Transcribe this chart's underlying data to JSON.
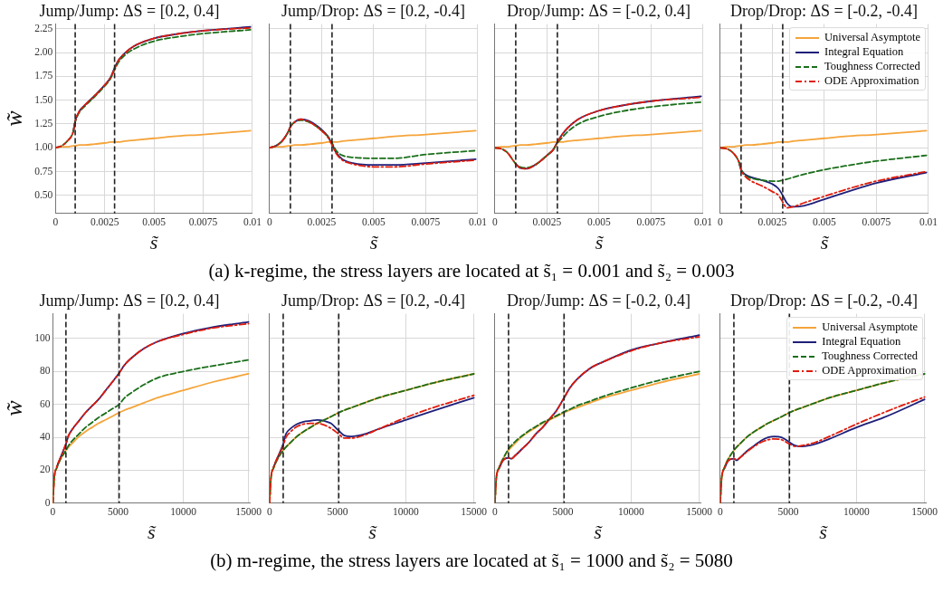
{
  "chart_data": [
    {
      "type": "line",
      "title": "Jump/Jump: ΔS = [0.2, 0.4]",
      "xlabel": "s̃",
      "ylabel": "w̃",
      "grid": true,
      "annotations": [
        "(a) k-regime, the stress layers are located at s̃₁ = 0.001 and s̃₂ = 0.003"
      ],
      "x": [
        0,
        0.0003,
        0.0006,
        0.0009,
        0.001,
        0.0012,
        0.0015,
        0.002,
        0.0025,
        0.0028,
        0.003,
        0.0032,
        0.0035,
        0.004,
        0.005,
        0.006,
        0.0075,
        0.0099
      ],
      "xlim": [
        0,
        0.01
      ],
      "xticks": [
        0,
        0.0025,
        0.005,
        0.0075,
        0.01
      ],
      "ylim": [
        0.31,
        2.3
      ],
      "yticks": [
        {
          "value": 0.5,
          "label": "0.50"
        },
        0.75,
        {
          "value": 1,
          "label": "1.00"
        },
        1.25,
        {
          "value": 1.5,
          "label": "1.50"
        },
        1.75,
        {
          "value": 2,
          "label": "2.00"
        },
        2.25
      ],
      "ref_lines": [
        {
          "axis": "x",
          "value": 0.001,
          "color": "#222222",
          "line_style": "dashed"
        },
        {
          "axis": "x",
          "value": 0.003,
          "color": "#222222",
          "line_style": "dashed"
        }
      ],
      "series": [
        {
          "color": "#f5a43a",
          "line_style": "solid",
          "values": [
            1.0,
            1.01,
            1.01,
            1.02,
            1.02,
            1.03,
            1.03,
            1.04,
            1.05,
            1.06,
            1.06,
            1.06,
            1.07,
            1.08,
            1.1,
            1.12,
            1.14,
            1.18
          ]
        },
        {
          "color": "#1f1f7a",
          "line_style": "solid",
          "values": [
            null,
            null,
            null,
            1.17,
            1.28,
            1.38,
            1.45,
            1.55,
            1.66,
            1.74,
            1.84,
            1.92,
            1.99,
            2.07,
            2.15,
            2.19,
            2.23,
            2.27
          ]
        },
        {
          "color": "#1a6e1a",
          "line_style": "dashed",
          "values": [
            1.0,
            1.02,
            1.07,
            1.17,
            1.27,
            1.37,
            1.44,
            1.54,
            1.65,
            1.73,
            1.82,
            1.9,
            1.97,
            2.04,
            2.12,
            2.16,
            2.2,
            2.24
          ]
        },
        {
          "color": "#e01b0b",
          "line_style": "dashdot",
          "values": [
            1.0,
            1.02,
            1.07,
            1.17,
            1.28,
            1.38,
            1.45,
            1.55,
            1.66,
            1.74,
            1.83,
            1.92,
            1.99,
            2.07,
            2.15,
            2.19,
            2.23,
            2.26
          ]
        }
      ]
    },
    {
      "type": "line",
      "title": "Jump/Drop: ΔS = [0.2, -0.4]",
      "xlabel": "s̃",
      "grid": true,
      "tick_labels": "x",
      "x": [
        0,
        0.0003,
        0.0006,
        0.0009,
        0.001,
        0.0012,
        0.0015,
        0.002,
        0.0025,
        0.0028,
        0.003,
        0.0032,
        0.0035,
        0.004,
        0.005,
        0.006,
        0.0075,
        0.0099
      ],
      "xlim": [
        0,
        0.01
      ],
      "xticks": [
        0,
        0.0025,
        0.005,
        0.0075,
        0.01
      ],
      "ylim": [
        0.31,
        2.3
      ],
      "yticks": [
        0.5,
        0.75,
        1,
        1.25,
        1.5,
        1.75,
        2,
        2.25
      ],
      "ref_lines": [
        {
          "axis": "x",
          "value": 0.001,
          "color": "#222222",
          "line_style": "dashed"
        },
        {
          "axis": "x",
          "value": 0.003,
          "color": "#222222",
          "line_style": "dashed"
        }
      ],
      "series": [
        {
          "color": "#f5a43a",
          "line_style": "solid",
          "values": [
            1.0,
            1.01,
            1.01,
            1.02,
            1.02,
            1.03,
            1.03,
            1.04,
            1.05,
            1.06,
            1.06,
            1.06,
            1.07,
            1.08,
            1.1,
            1.12,
            1.14,
            1.18
          ]
        },
        {
          "color": "#1f1f7a",
          "line_style": "solid",
          "values": [
            1.0,
            1.02,
            1.07,
            1.17,
            1.22,
            1.27,
            1.3,
            1.27,
            1.19,
            1.12,
            1.04,
            0.95,
            0.88,
            0.84,
            0.82,
            0.82,
            0.84,
            0.88
          ]
        },
        {
          "color": "#1a6e1a",
          "line_style": "dashed",
          "values": [
            1.0,
            1.02,
            1.07,
            1.17,
            1.22,
            1.27,
            1.29,
            1.26,
            1.18,
            1.12,
            1.05,
            0.97,
            0.92,
            0.9,
            0.89,
            0.89,
            0.93,
            0.97
          ]
        },
        {
          "color": "#e01b0b",
          "line_style": "dashdot",
          "values": [
            1.0,
            1.02,
            1.07,
            1.17,
            1.22,
            1.27,
            1.3,
            1.26,
            1.18,
            1.11,
            1.03,
            0.94,
            0.87,
            0.83,
            0.8,
            0.8,
            0.83,
            0.87
          ]
        }
      ]
    },
    {
      "type": "line",
      "title": "Drop/Jump: ΔS = [-0.2, 0.4]",
      "xlabel": "s̃",
      "grid": true,
      "tick_labels": "x",
      "x": [
        0,
        0.0003,
        0.0006,
        0.0009,
        0.001,
        0.0012,
        0.0015,
        0.002,
        0.0025,
        0.0028,
        0.003,
        0.0032,
        0.0035,
        0.004,
        0.005,
        0.006,
        0.0075,
        0.0099
      ],
      "xlim": [
        0,
        0.01
      ],
      "xticks": [
        0,
        0.0025,
        0.005,
        0.0075,
        0.01
      ],
      "ylim": [
        0.31,
        2.3
      ],
      "yticks": [
        0.5,
        0.75,
        1,
        1.25,
        1.5,
        1.75,
        2,
        2.25
      ],
      "ref_lines": [
        {
          "axis": "x",
          "value": 0.001,
          "color": "#222222",
          "line_style": "dashed"
        },
        {
          "axis": "x",
          "value": 0.003,
          "color": "#222222",
          "line_style": "dashed"
        }
      ],
      "series": [
        {
          "color": "#f5a43a",
          "line_style": "solid",
          "values": [
            1.0,
            1.01,
            1.01,
            1.02,
            1.02,
            1.03,
            1.03,
            1.04,
            1.05,
            1.06,
            1.06,
            1.06,
            1.07,
            1.08,
            1.1,
            1.12,
            1.14,
            1.18
          ]
        },
        {
          "color": "#1f1f7a",
          "line_style": "solid",
          "values": [
            null,
            null,
            null,
            null,
            0.83,
            0.79,
            0.78,
            0.83,
            0.92,
            0.98,
            1.06,
            1.13,
            1.21,
            1.3,
            1.39,
            1.44,
            1.49,
            1.54
          ]
        },
        {
          "color": "#1a6e1a",
          "line_style": "dashed",
          "values": [
            1.0,
            0.99,
            0.95,
            0.86,
            0.83,
            0.8,
            0.79,
            0.83,
            0.92,
            0.98,
            1.05,
            1.1,
            1.17,
            1.25,
            1.33,
            1.38,
            1.43,
            1.48
          ]
        },
        {
          "color": "#e01b0b",
          "line_style": "dashdot",
          "values": [
            1.0,
            0.99,
            0.95,
            0.86,
            0.83,
            0.79,
            0.78,
            0.83,
            0.92,
            0.98,
            1.06,
            1.13,
            1.21,
            1.3,
            1.39,
            1.44,
            1.49,
            1.53
          ]
        }
      ]
    },
    {
      "type": "line",
      "title": "Drop/Drop: ΔS = [-0.2, -0.4]",
      "xlabel": "s̃",
      "grid": true,
      "tick_labels": "x",
      "legend": "top right",
      "x": [
        0,
        0.0003,
        0.0006,
        0.0009,
        0.001,
        0.0012,
        0.0015,
        0.002,
        0.0025,
        0.0028,
        0.003,
        0.0032,
        0.0035,
        0.004,
        0.005,
        0.006,
        0.0075,
        0.0099
      ],
      "xlim": [
        0,
        0.01
      ],
      "xticks": [
        0,
        0.0025,
        0.005,
        0.0075,
        0.01
      ],
      "ylim": [
        0.31,
        2.3
      ],
      "yticks": [
        0.5,
        0.75,
        1,
        1.25,
        1.5,
        1.75,
        2,
        2.25
      ],
      "ref_lines": [
        {
          "axis": "x",
          "value": 0.001,
          "color": "#222222",
          "line_style": "dashed"
        },
        {
          "axis": "x",
          "value": 0.003,
          "color": "#222222",
          "line_style": "dashed"
        }
      ],
      "series": [
        {
          "name": "Universal Asymptote",
          "color": "#f5a43a",
          "line_style": "solid",
          "values": [
            1.0,
            1.01,
            1.01,
            1.02,
            1.02,
            1.03,
            1.03,
            1.04,
            1.05,
            1.06,
            1.06,
            1.06,
            1.07,
            1.08,
            1.1,
            1.12,
            1.14,
            1.18
          ]
        },
        {
          "name": "Integral Equation",
          "color": "#1f1f7a",
          "line_style": "solid",
          "values": [
            null,
            null,
            null,
            0.85,
            0.77,
            0.72,
            0.69,
            0.66,
            0.62,
            0.57,
            0.5,
            0.42,
            0.38,
            0.39,
            0.46,
            0.53,
            0.63,
            0.74
          ]
        },
        {
          "name": "Toughness Corrected",
          "color": "#1a6e1a",
          "line_style": "dashed",
          "values": [
            1.0,
            0.99,
            0.95,
            0.85,
            0.77,
            0.71,
            0.68,
            0.66,
            0.65,
            0.65,
            0.66,
            0.67,
            0.69,
            0.72,
            0.77,
            0.81,
            0.86,
            0.92
          ]
        },
        {
          "name": "ODE Approximation",
          "color": "#e01b0b",
          "line_style": "dashdot",
          "values": [
            1.0,
            0.99,
            0.95,
            0.85,
            0.77,
            0.7,
            0.65,
            0.6,
            0.54,
            0.5,
            0.43,
            0.37,
            0.38,
            0.42,
            0.49,
            0.56,
            0.65,
            0.75
          ]
        }
      ]
    },
    {
      "type": "line",
      "title": "Jump/Jump: ΔS = [0.2, 0.4]",
      "xlabel": "s̃",
      "ylabel": "w̃",
      "grid": true,
      "annotations": [
        "(b) m-regime, the stress layers are located at s̃₁ = 1000 and s̃₂ = 5080"
      ],
      "x": [
        0,
        100,
        300,
        600,
        1000,
        1200,
        1500,
        2000,
        2500,
        3000,
        3500,
        4000,
        4500,
        5080,
        5500,
        6000,
        7000,
        8000,
        10000,
        12000,
        15000
      ],
      "xlim": [
        0,
        15100
      ],
      "xticks": [
        0,
        5000,
        10000,
        15000
      ],
      "ylim": [
        0,
        115
      ],
      "yticks": [
        0,
        20,
        40,
        60,
        80,
        100
      ],
      "ref_lines": [
        {
          "axis": "x",
          "value": 1000,
          "color": "#222222",
          "line_style": "dashed"
        },
        {
          "axis": "x",
          "value": 5080,
          "color": "#222222",
          "line_style": "dashed"
        }
      ],
      "series": [
        {
          "color": "#f5a43a",
          "line_style": "solid",
          "values": [
            0,
            15,
            21.5,
            27,
            32,
            34,
            36.5,
            40.5,
            43.5,
            46,
            48.5,
            50.5,
            52.5,
            55,
            56.5,
            58,
            61,
            64,
            68.5,
            73,
            78.5
          ]
        },
        {
          "color": "#1f1f7a",
          "line_style": "solid",
          "values": [
            null,
            null,
            22,
            28,
            36,
            41,
            45,
            50,
            55,
            59,
            63,
            68,
            73,
            79,
            84,
            88,
            94,
            98,
            103,
            106.5,
            110
          ]
        },
        {
          "color": "#1a6e1a",
          "line_style": "dashed",
          "values": [
            0,
            15,
            21.5,
            27,
            32,
            35,
            38,
            42,
            46,
            49,
            52,
            54.5,
            57,
            60,
            64,
            67,
            72,
            76,
            80,
            83,
            87
          ]
        },
        {
          "color": "#e01b0b",
          "line_style": "dashdot",
          "values": [
            0,
            15,
            22,
            28,
            36,
            41,
            45,
            50,
            55,
            59,
            63,
            68,
            73,
            79,
            84,
            88,
            94,
            98,
            102.5,
            106,
            109
          ]
        }
      ]
    },
    {
      "type": "line",
      "title": "Jump/Drop: ΔS = [0.2, -0.4]",
      "xlabel": "s̃",
      "grid": true,
      "tick_labels": "x",
      "x": [
        0,
        100,
        300,
        600,
        1000,
        1200,
        1500,
        2000,
        2500,
        3000,
        3500,
        4000,
        4500,
        5080,
        5500,
        6000,
        7000,
        8000,
        10000,
        12000,
        15000
      ],
      "xlim": [
        0,
        15100
      ],
      "xticks": [
        0,
        5000,
        10000,
        15000
      ],
      "ylim": [
        0,
        115
      ],
      "yticks": [
        0,
        20,
        40,
        60,
        80,
        100
      ],
      "ref_lines": [
        {
          "axis": "x",
          "value": 1000,
          "color": "#222222",
          "line_style": "dashed"
        },
        {
          "axis": "x",
          "value": 5080,
          "color": "#222222",
          "line_style": "dashed"
        }
      ],
      "series": [
        {
          "color": "#f5a43a",
          "line_style": "solid",
          "values": [
            0,
            15,
            21.5,
            27,
            32,
            34,
            36.5,
            40.5,
            43.5,
            46,
            48.5,
            50.5,
            52.5,
            55,
            56.5,
            58,
            61,
            64,
            68.5,
            73,
            78.5
          ]
        },
        {
          "color": "#1f1f7a",
          "line_style": "solid",
          "values": [
            null,
            null,
            22,
            28,
            36,
            42,
            45,
            48,
            49.5,
            50,
            50.5,
            50,
            48.5,
            44,
            41,
            40.5,
            42,
            45,
            50.5,
            56,
            64
          ]
        },
        {
          "color": "#1a6e1a",
          "line_style": "dashed",
          "values": [
            0,
            15,
            21.5,
            27,
            32,
            34,
            36.5,
            40.5,
            43.5,
            46,
            48.5,
            50.5,
            52.5,
            55,
            56.5,
            58,
            61,
            64,
            68.5,
            73,
            78.5
          ]
        },
        {
          "color": "#e01b0b",
          "line_style": "dashdot",
          "values": [
            0,
            15,
            22,
            28,
            35,
            40,
            43,
            46.5,
            48,
            48.5,
            48.5,
            47.5,
            45.5,
            42,
            39.5,
            39.5,
            41.5,
            45,
            52,
            58,
            65.5
          ]
        }
      ]
    },
    {
      "type": "line",
      "title": "Drop/Jump: ΔS = [-0.2, 0.4]",
      "xlabel": "s̃",
      "grid": true,
      "tick_labels": "x",
      "x": [
        0,
        100,
        300,
        600,
        1000,
        1200,
        1500,
        2000,
        2500,
        3000,
        3500,
        4000,
        4500,
        5080,
        5500,
        6000,
        7000,
        8000,
        10000,
        12000,
        15000
      ],
      "xlim": [
        0,
        15100
      ],
      "xticks": [
        0,
        5000,
        10000,
        15000
      ],
      "ylim": [
        0,
        115
      ],
      "yticks": [
        0,
        20,
        40,
        60,
        80,
        100
      ],
      "ref_lines": [
        {
          "axis": "x",
          "value": 1000,
          "color": "#222222",
          "line_style": "dashed"
        },
        {
          "axis": "x",
          "value": 5080,
          "color": "#222222",
          "line_style": "dashed"
        }
      ],
      "series": [
        {
          "color": "#f5a43a",
          "line_style": "solid",
          "values": [
            0,
            15,
            21.5,
            27,
            32,
            34,
            36.5,
            40.5,
            43.5,
            46,
            48.5,
            50.5,
            52.5,
            55,
            56.5,
            58,
            61,
            64,
            68.5,
            73,
            78.5
          ]
        },
        {
          "color": "#1f1f7a",
          "line_style": "solid",
          "values": [
            null,
            null,
            21,
            26,
            27.5,
            27,
            29,
            33,
            37,
            42,
            46,
            51,
            56,
            64,
            70,
            75,
            82,
            86,
            93,
            97,
            102
          ]
        },
        {
          "color": "#1a6e1a",
          "line_style": "dashed",
          "values": [
            0,
            15,
            21.5,
            27,
            33,
            35,
            37.5,
            41,
            44,
            46.5,
            49,
            51,
            53,
            55.5,
            57,
            59,
            62,
            65,
            70,
            74.5,
            80
          ]
        },
        {
          "color": "#e01b0b",
          "line_style": "dashdot",
          "values": [
            0,
            15,
            21,
            26,
            27.5,
            27,
            29,
            33,
            37,
            42,
            46,
            51,
            56,
            64,
            70,
            75,
            82,
            86,
            92.5,
            97,
            101
          ]
        }
      ]
    },
    {
      "type": "line",
      "title": "Drop/Drop: ΔS = [-0.2, -0.4]",
      "xlabel": "s̃",
      "grid": true,
      "tick_labels": "x",
      "legend": "top right",
      "x": [
        0,
        100,
        300,
        600,
        1000,
        1200,
        1500,
        2000,
        2500,
        3000,
        3500,
        4000,
        4500,
        5080,
        5500,
        6000,
        7000,
        8000,
        10000,
        12000,
        15000
      ],
      "xlim": [
        0,
        15100
      ],
      "xticks": [
        0,
        5000,
        10000,
        15000
      ],
      "ylim": [
        0,
        115
      ],
      "yticks": [
        0,
        20,
        40,
        60,
        80,
        100
      ],
      "ref_lines": [
        {
          "axis": "x",
          "value": 1000,
          "color": "#222222",
          "line_style": "dashed"
        },
        {
          "axis": "x",
          "value": 5080,
          "color": "#222222",
          "line_style": "dashed"
        }
      ],
      "series": [
        {
          "name": "Universal Asymptote",
          "color": "#f5a43a",
          "line_style": "solid",
          "values": [
            0,
            15,
            21.5,
            27,
            32,
            34,
            36.5,
            40.5,
            43.5,
            46,
            48.5,
            50.5,
            52.5,
            55,
            56.5,
            58,
            61,
            64,
            68.5,
            73,
            78.5
          ]
        },
        {
          "name": "Integral Equation",
          "color": "#1f1f7a",
          "line_style": "solid",
          "values": [
            null,
            null,
            21,
            26,
            27,
            26,
            28,
            32,
            35,
            38,
            40,
            40.5,
            40,
            37,
            35,
            34.5,
            36,
            39,
            46,
            52,
            63
          ]
        },
        {
          "name": "Toughness Corrected",
          "color": "#1a6e1a",
          "line_style": "dashed",
          "values": [
            0,
            15,
            21.5,
            27,
            32,
            34,
            36.5,
            40.5,
            43.5,
            46,
            48.5,
            50.5,
            52.5,
            55,
            56.5,
            58,
            61,
            64,
            68.5,
            73,
            78.5
          ]
        },
        {
          "name": "ODE Approximation",
          "color": "#e01b0b",
          "line_style": "dashdot",
          "values": [
            0,
            15,
            21,
            26,
            27,
            26.5,
            28,
            31.5,
            34.5,
            37,
            38.5,
            39,
            38.5,
            36,
            34.5,
            35,
            37,
            40.5,
            48,
            55,
            64.5
          ]
        }
      ]
    }
  ]
}
